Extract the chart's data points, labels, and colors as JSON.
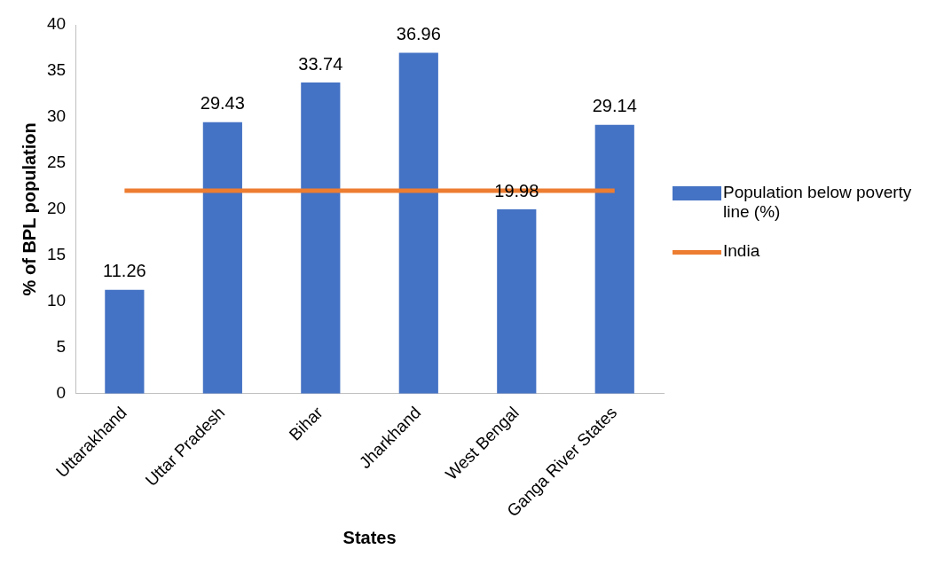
{
  "chart_data": {
    "type": "bar",
    "xlabel": "States",
    "ylabel": "% of BPL population",
    "categories": [
      "Uttarakhand",
      "Uttar Pradesh",
      "Bihar",
      "Jharkhand",
      "West Bengal",
      "Ganga River States"
    ],
    "series": [
      {
        "name": "Population below poverty line (%)",
        "color": "#4472c4",
        "values": [
          11.26,
          29.43,
          33.74,
          36.96,
          19.98,
          29.14
        ],
        "value_labels": [
          "11.26",
          "29.43",
          "33.74",
          "36.96",
          "19.98",
          "29.14"
        ]
      },
      {
        "name": "India",
        "type": "line",
        "color": "#ed7d31",
        "values": [
          22,
          22,
          22,
          22,
          22,
          22
        ]
      }
    ],
    "ylim": [
      0,
      40
    ],
    "yticks": [
      0,
      5,
      10,
      15,
      20,
      25,
      30,
      35,
      40
    ],
    "grid": false,
    "legend": "right",
    "marker": "none"
  }
}
